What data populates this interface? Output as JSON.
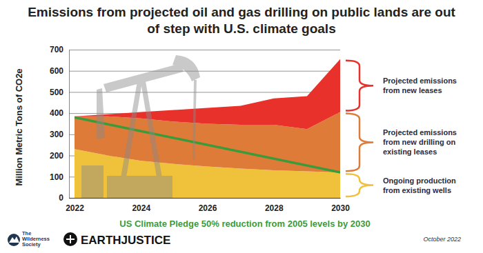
{
  "chart_data": {
    "type": "area",
    "stacked": true,
    "grid": true,
    "title": "Emissions from projected oil and gas drilling on public lands are out of step with U.S. climate goals",
    "y_label": "Million Metric Tons of CO2e",
    "x": [
      2022,
      2023,
      2024,
      2025,
      2026,
      2027,
      2028,
      2029,
      2030
    ],
    "xlim": [
      2022,
      2030
    ],
    "xticks": [
      2022,
      2024,
      2026,
      2028,
      2030
    ],
    "ylim": [
      0,
      700
    ],
    "yticks": [
      0,
      100,
      200,
      300,
      400,
      500,
      600,
      700
    ],
    "series": [
      {
        "name": "Ongoing production from existing wells",
        "type": "area",
        "color": "#f0c23b",
        "values": [
          230,
          200,
          175,
          160,
          148,
          138,
          130,
          125,
          120
        ]
      },
      {
        "name": "Projected emissions from new drilling on existing leases",
        "type": "area",
        "color": "#de7b39",
        "values": [
          155,
          185,
          200,
          200,
          202,
          207,
          215,
          200,
          285
        ]
      },
      {
        "name": "Projected emissions from new leases",
        "type": "area",
        "color": "#e8312b",
        "values": [
          0,
          10,
          30,
          55,
          75,
          90,
          125,
          155,
          250
        ]
      },
      {
        "name": "US Climate Pledge 50% reduction from 2005 levels by 2030",
        "type": "line",
        "color": "#3b9b3b",
        "x": [
          2022,
          2030
        ],
        "values": [
          380,
          120
        ]
      }
    ],
    "annotations": [
      "The Wilderness Society",
      "EARTHJUSTICE",
      "October 2022"
    ]
  }
}
